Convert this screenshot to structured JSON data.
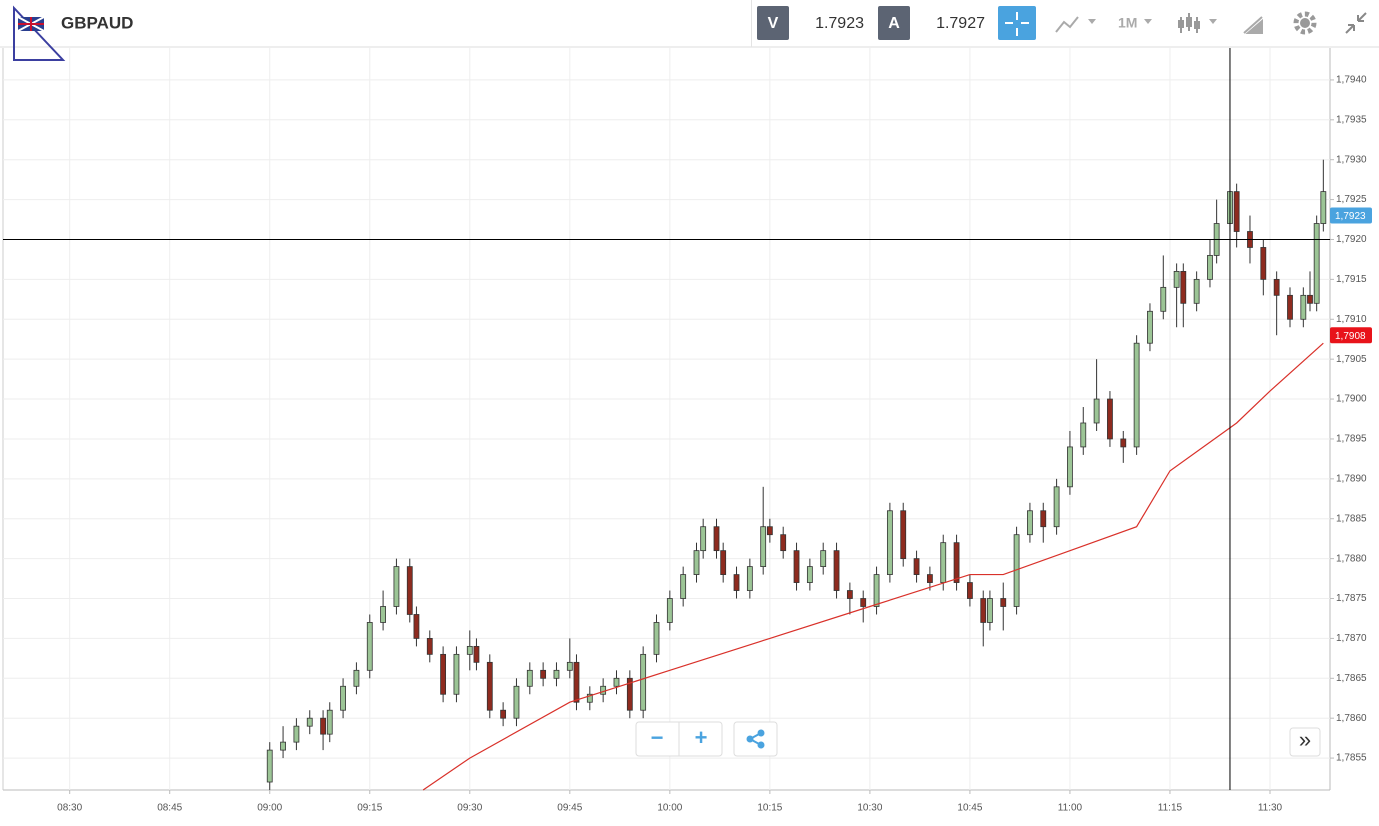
{
  "toolbar": {
    "symbol": "GBPAUD",
    "bid_label": "V",
    "bid": "1.7923",
    "ask_label": "A",
    "ask": "1.7927",
    "timeframe": "1M"
  },
  "controls": {
    "zoom_out": "−",
    "zoom_in": "+",
    "expand": "»"
  },
  "chart_data": {
    "type": "candlestick",
    "xlim": [
      "08:20",
      "11:39"
    ],
    "xticks": [
      "08:30",
      "08:45",
      "09:00",
      "09:15",
      "09:30",
      "09:45",
      "10:00",
      "10:15",
      "10:30",
      "10:45",
      "11:00",
      "11:15",
      "11:30"
    ],
    "ylim": [
      1.7851,
      1.7944
    ],
    "yticks": [
      {
        "value": 1.7855,
        "label": "1,7855"
      },
      {
        "value": 1.786,
        "label": "1,7860"
      },
      {
        "value": 1.7865,
        "label": "1,7865"
      },
      {
        "value": 1.787,
        "label": "1,7870"
      },
      {
        "value": 1.7875,
        "label": "1,7875"
      },
      {
        "value": 1.788,
        "label": "1,7880"
      },
      {
        "value": 1.7885,
        "label": "1,7885"
      },
      {
        "value": 1.789,
        "label": "1,7890"
      },
      {
        "value": 1.7895,
        "label": "1,7895"
      },
      {
        "value": 1.79,
        "label": "1,7900"
      },
      {
        "value": 1.7905,
        "label": "1,7905"
      },
      {
        "value": 1.791,
        "label": "1,7910"
      },
      {
        "value": 1.7915,
        "label": "1,7915"
      },
      {
        "value": 1.792,
        "label": "1,7920"
      },
      {
        "value": 1.7925,
        "label": "1,7925"
      },
      {
        "value": 1.793,
        "label": "1,7930"
      },
      {
        "value": 1.7935,
        "label": "1,7935"
      },
      {
        "value": 1.794,
        "label": "1,7940"
      }
    ],
    "grid": true,
    "up_color": "#9cc596",
    "down_color": "#8e2b1f",
    "x": [
      "09:00",
      "09:02",
      "09:04",
      "09:06",
      "09:08",
      "09:09",
      "09:11",
      "09:13",
      "09:15",
      "09:17",
      "09:19",
      "09:21",
      "09:22",
      "09:24",
      "09:26",
      "09:28",
      "09:30",
      "09:31",
      "09:33",
      "09:35",
      "09:37",
      "09:39",
      "09:41",
      "09:43",
      "09:45",
      "09:46",
      "09:48",
      "09:50",
      "09:52",
      "09:54",
      "09:56",
      "09:58",
      "10:00",
      "10:02",
      "10:04",
      "10:05",
      "10:07",
      "10:08",
      "10:10",
      "10:12",
      "10:14",
      "10:15",
      "10:17",
      "10:19",
      "10:21",
      "10:23",
      "10:25",
      "10:27",
      "10:29",
      "10:31",
      "10:33",
      "10:35",
      "10:37",
      "10:39",
      "10:41",
      "10:43",
      "10:45",
      "10:47",
      "10:48",
      "10:50",
      "10:52",
      "10:54",
      "10:56",
      "10:58",
      "11:00",
      "11:02",
      "11:04",
      "11:06",
      "11:08",
      "11:10",
      "11:12",
      "11:14",
      "11:16",
      "11:17",
      "11:19",
      "11:21",
      "11:22",
      "11:24",
      "11:25",
      "11:27",
      "11:29",
      "11:31",
      "11:33",
      "11:35",
      "11:36",
      "11:37",
      "11:38"
    ],
    "open": [
      1.7852,
      1.7856,
      1.7857,
      1.7859,
      1.786,
      1.7858,
      1.7861,
      1.7864,
      1.7866,
      1.7872,
      1.7874,
      1.7879,
      1.7873,
      1.787,
      1.7868,
      1.7863,
      1.7868,
      1.7869,
      1.7867,
      1.7861,
      1.786,
      1.7864,
      1.7866,
      1.7865,
      1.7866,
      1.7867,
      1.7862,
      1.7863,
      1.7864,
      1.7865,
      1.7861,
      1.7868,
      1.7872,
      1.7875,
      1.7878,
      1.7881,
      1.7884,
      1.7881,
      1.7878,
      1.7876,
      1.7879,
      1.7884,
      1.7883,
      1.7881,
      1.7877,
      1.7879,
      1.7881,
      1.7876,
      1.7875,
      1.7874,
      1.7878,
      1.7886,
      1.788,
      1.7878,
      1.7877,
      1.7882,
      1.7877,
      1.7875,
      1.7872,
      1.7875,
      1.7874,
      1.7883,
      1.7886,
      1.7884,
      1.7889,
      1.7894,
      1.7897,
      1.79,
      1.7895,
      1.7894,
      1.7907,
      1.7911,
      1.7914,
      1.7916,
      1.7912,
      1.7915,
      1.7918,
      1.7922,
      1.7926,
      1.7921,
      1.7919,
      1.7915,
      1.7913,
      1.791,
      1.7913,
      1.7912,
      1.7922
    ],
    "high": [
      1.7857,
      1.7859,
      1.786,
      1.7861,
      1.7861,
      1.7862,
      1.7865,
      1.7867,
      1.7873,
      1.7876,
      1.788,
      1.788,
      1.7874,
      1.7871,
      1.7869,
      1.7869,
      1.7871,
      1.787,
      1.7868,
      1.7862,
      1.7865,
      1.7867,
      1.7867,
      1.7867,
      1.787,
      1.7868,
      1.7864,
      1.7865,
      1.7866,
      1.7866,
      1.7869,
      1.7873,
      1.7876,
      1.7879,
      1.7882,
      1.7885,
      1.7885,
      1.7882,
      1.7879,
      1.788,
      1.7889,
      1.7885,
      1.7884,
      1.7882,
      1.788,
      1.7882,
      1.7882,
      1.7877,
      1.7876,
      1.7879,
      1.7887,
      1.7887,
      1.7881,
      1.7879,
      1.7883,
      1.7883,
      1.7878,
      1.7876,
      1.7876,
      1.7877,
      1.7884,
      1.7887,
      1.7887,
      1.789,
      1.7896,
      1.7899,
      1.7905,
      1.7901,
      1.7896,
      1.7908,
      1.7912,
      1.7918,
      1.7917,
      1.7917,
      1.7916,
      1.792,
      1.7925,
      1.793,
      1.7927,
      1.7923,
      1.792,
      1.7916,
      1.7914,
      1.7914,
      1.7916,
      1.7923,
      1.793
    ],
    "low": [
      1.7851,
      1.7855,
      1.7856,
      1.7858,
      1.7856,
      1.7857,
      1.786,
      1.7863,
      1.7865,
      1.7871,
      1.7873,
      1.7872,
      1.7869,
      1.7867,
      1.7862,
      1.7862,
      1.7866,
      1.7866,
      1.786,
      1.7859,
      1.7859,
      1.7863,
      1.7864,
      1.7864,
      1.7865,
      1.7861,
      1.7861,
      1.7862,
      1.7863,
      1.786,
      1.786,
      1.7867,
      1.7871,
      1.7874,
      1.7877,
      1.788,
      1.788,
      1.7877,
      1.7875,
      1.7875,
      1.7878,
      1.7882,
      1.788,
      1.7876,
      1.7876,
      1.7878,
      1.7875,
      1.7873,
      1.7872,
      1.7873,
      1.7877,
      1.7879,
      1.7877,
      1.7876,
      1.7876,
      1.7876,
      1.7874,
      1.7869,
      1.7871,
      1.7871,
      1.7873,
      1.7882,
      1.7882,
      1.7883,
      1.7888,
      1.7893,
      1.7896,
      1.7894,
      1.7892,
      1.7893,
      1.7906,
      1.791,
      1.7909,
      1.7909,
      1.7911,
      1.7914,
      1.7917,
      1.7921,
      1.7919,
      1.7917,
      1.7913,
      1.7908,
      1.7909,
      1.7909,
      1.7911,
      1.7911,
      1.7921
    ],
    "close": [
      1.7856,
      1.7857,
      1.7859,
      1.786,
      1.7858,
      1.7861,
      1.7864,
      1.7866,
      1.7872,
      1.7874,
      1.7879,
      1.7873,
      1.787,
      1.7868,
      1.7863,
      1.7868,
      1.7869,
      1.7867,
      1.7861,
      1.786,
      1.7864,
      1.7866,
      1.7865,
      1.7866,
      1.7867,
      1.7862,
      1.7863,
      1.7864,
      1.7865,
      1.7861,
      1.7868,
      1.7872,
      1.7875,
      1.7878,
      1.7881,
      1.7884,
      1.7881,
      1.7878,
      1.7876,
      1.7879,
      1.7884,
      1.7883,
      1.7881,
      1.7877,
      1.7879,
      1.7881,
      1.7876,
      1.7875,
      1.7874,
      1.7878,
      1.7886,
      1.788,
      1.7878,
      1.7877,
      1.7882,
      1.7877,
      1.7875,
      1.7872,
      1.7875,
      1.7874,
      1.7883,
      1.7886,
      1.7884,
      1.7889,
      1.7894,
      1.7897,
      1.79,
      1.7895,
      1.7894,
      1.7907,
      1.7911,
      1.7914,
      1.7916,
      1.7912,
      1.7915,
      1.7918,
      1.7922,
      1.7926,
      1.7921,
      1.7919,
      1.7915,
      1.7913,
      1.791,
      1.7913,
      1.7912,
      1.7922,
      1.7926
    ],
    "moving_average": {
      "color": "#d9312a",
      "x": [
        "09:23",
        "09:30",
        "09:45",
        "10:00",
        "10:15",
        "10:30",
        "10:45",
        "10:50",
        "11:00",
        "11:10",
        "11:15",
        "11:25",
        "11:30",
        "11:38"
      ],
      "values": [
        1.7851,
        1.7855,
        1.7862,
        1.7866,
        1.787,
        1.7874,
        1.7878,
        1.7878,
        1.7881,
        1.7884,
        1.7891,
        1.7897,
        1.7901,
        1.7907
      ]
    },
    "crosshair": {
      "x": "11:24",
      "y": 1.792
    },
    "price_tags": [
      {
        "value": 1.7923,
        "label": "1,7923",
        "color": "#4aa3df"
      },
      {
        "value": 1.7908,
        "label": "1,7908",
        "color": "#e8131a"
      }
    ]
  }
}
